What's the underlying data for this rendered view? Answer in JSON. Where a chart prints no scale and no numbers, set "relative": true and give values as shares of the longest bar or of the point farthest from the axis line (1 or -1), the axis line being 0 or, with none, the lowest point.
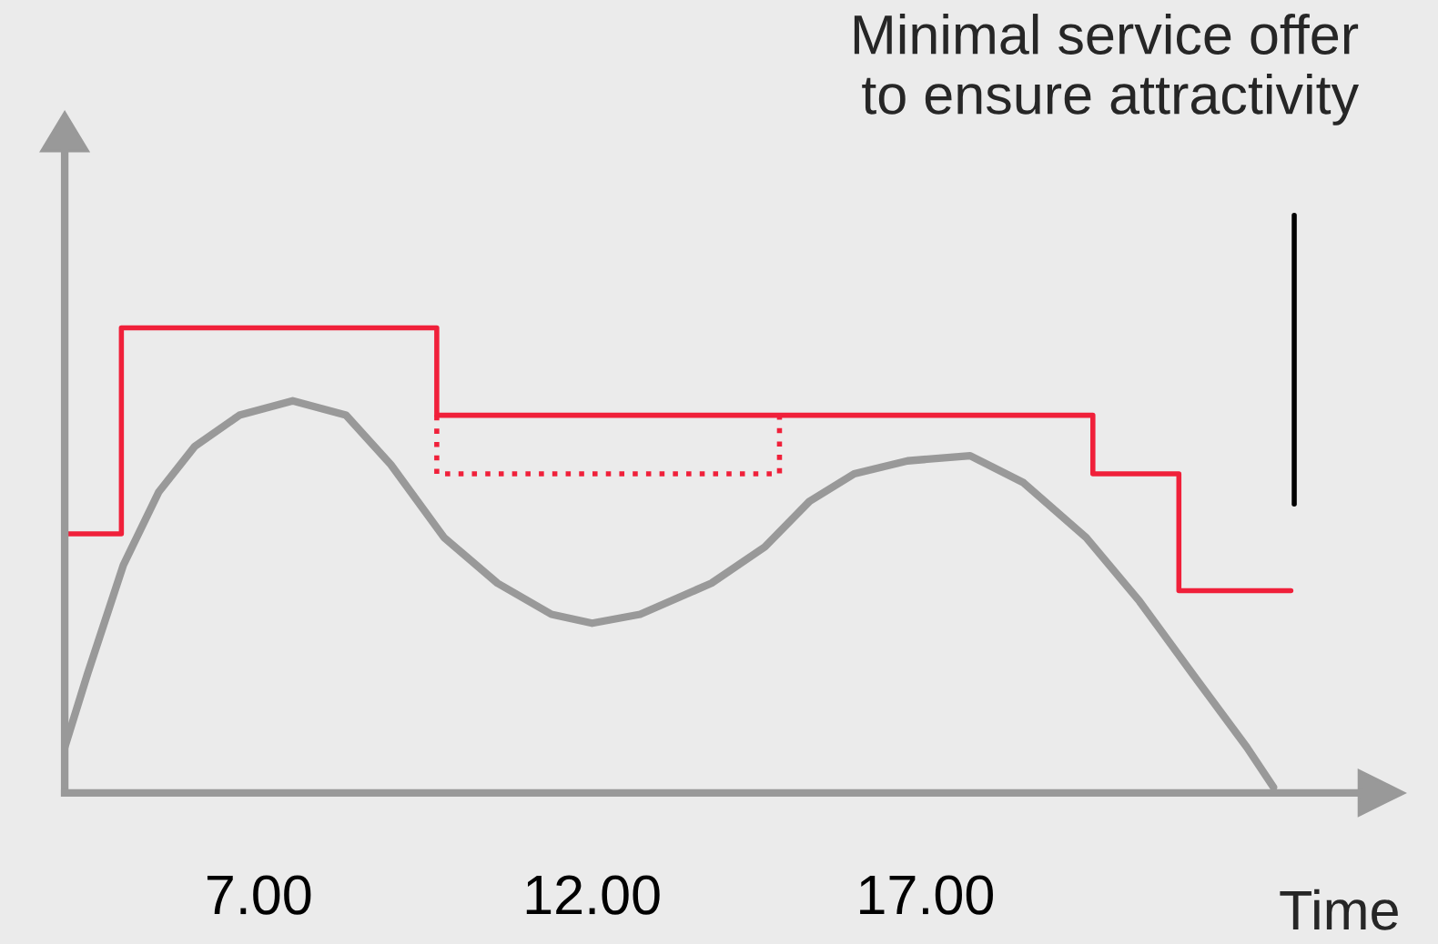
{
  "chart_data": {
    "type": "line",
    "relative": true,
    "xlabel": "Time",
    "xlim": [
      4.09,
      23.5
    ],
    "xticks": [
      {
        "value": 7,
        "label": "7.00"
      },
      {
        "value": 12,
        "label": "12.00"
      },
      {
        "value": 17,
        "label": "17.00"
      }
    ],
    "grid": false,
    "legend": false,
    "series": [
      {
        "color": "#999999",
        "line_style": "solid",
        "x": [
          4.09,
          4.43,
          4.97,
          5.5,
          6.04,
          6.71,
          7.51,
          8.31,
          8.98,
          9.78,
          10.58,
          11.39,
          12.0,
          12.72,
          13.79,
          14.59,
          15.26,
          15.93,
          16.73,
          17.67,
          18.47,
          19.41,
          20.21,
          21.01,
          21.82,
          22.22
        ],
        "values": [
          0.098,
          0.255,
          0.49,
          0.647,
          0.745,
          0.812,
          0.843,
          0.812,
          0.706,
          0.549,
          0.451,
          0.384,
          0.365,
          0.384,
          0.451,
          0.529,
          0.627,
          0.686,
          0.714,
          0.725,
          0.667,
          0.549,
          0.412,
          0.255,
          0.098,
          0.012
        ]
      },
      {
        "type": "step",
        "color": "#f0203a",
        "line_style": "solid",
        "x": [
          4.09,
          4.94,
          9.67,
          19.51,
          20.8,
          22.48
        ],
        "values": [
          0.557,
          1,
          0.812,
          0.686,
          0.435,
          0.435
        ]
      },
      {
        "type": "line",
        "color": "#f0203a",
        "line_style": "dotted",
        "x": [
          9.67,
          9.67,
          14.81,
          14.81
        ],
        "values": [
          0.812,
          0.686,
          0.686,
          0.812
        ]
      }
    ],
    "ref_lines": [
      {
        "axis": "x",
        "value": 22.53,
        "color": "#000000"
      }
    ],
    "annotations": [
      "Minimal service offer\nto ensure attractivity"
    ]
  }
}
